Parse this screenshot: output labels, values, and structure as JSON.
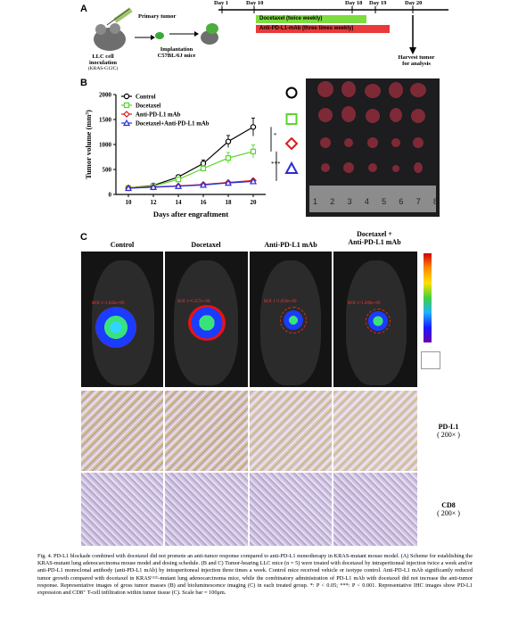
{
  "panel_a": {
    "letter": "A",
    "inoculation": [
      "LLC cell",
      "inoculation",
      "(KRAS-G12C)"
    ],
    "primary_tumor": "Primary tumor",
    "implantation": [
      "Implantation",
      "C57BL/6J mice"
    ],
    "days": [
      "Day 1",
      "Day 10",
      "Day 18",
      "Day 19",
      "Day 20"
    ],
    "docetaxel_bar": "Docetaxel (twice weekly)",
    "antipdl1_bar": "Anti-PD-L1-mAb (three times weekly)",
    "harvest": [
      "Harvest tumor",
      "for analysis"
    ],
    "colors": {
      "docetaxel": "#7ddc3f",
      "antipdl1": "#e83a3a"
    }
  },
  "panel_b": {
    "letter": "B",
    "significance": [
      "*",
      "***"
    ],
    "ruler_numbers": [
      "1",
      "2",
      "3",
      "4",
      "5",
      "6",
      "7",
      "8"
    ],
    "symbols": [
      "circle",
      "square",
      "diamond",
      "triangle"
    ]
  },
  "chart_data": {
    "type": "line",
    "xlabel": "Days after engraftment",
    "ylabel": "Tumor volume (mm³)",
    "x": [
      10,
      12,
      14,
      16,
      18,
      20
    ],
    "ylim": [
      0,
      2000
    ],
    "yticks": [
      0,
      500,
      1000,
      1500,
      2000
    ],
    "legend_position": "top-left",
    "series": [
      {
        "name": "Control",
        "color": "#000000",
        "marker": "circle",
        "values": [
          130,
          180,
          350,
          620,
          1060,
          1350
        ],
        "err": [
          15,
          20,
          40,
          70,
          120,
          180
        ]
      },
      {
        "name": "Docetaxel",
        "color": "#5ad62e",
        "marker": "square",
        "values": [
          130,
          170,
          300,
          520,
          730,
          860
        ],
        "err": [
          15,
          20,
          35,
          60,
          110,
          130
        ]
      },
      {
        "name": "Anti-PD-L1 mAb",
        "color": "#d81b1b",
        "marker": "diamond",
        "values": [
          130,
          150,
          170,
          200,
          240,
          280
        ],
        "err": [
          10,
          12,
          15,
          20,
          25,
          30
        ]
      },
      {
        "name": "Docetaxel+Anti-PD-L1 mAb",
        "color": "#2b2bd8",
        "marker": "triangle",
        "values": [
          125,
          145,
          165,
          190,
          230,
          260
        ],
        "err": [
          10,
          12,
          15,
          20,
          25,
          30
        ]
      }
    ]
  },
  "panel_c": {
    "letter": "C",
    "columns": [
      "Control",
      "Docetaxel",
      "Anti-PD-L1 mAb",
      "Docetaxel +\nAnti-PD-L1 mAb"
    ],
    "roi_labels": [
      "ROI 1=1.043e+09",
      "ROI 1=6.257e+08",
      "ROI 1=1.059e+09",
      "ROI 1=1.209e+09"
    ],
    "row_labels": [
      {
        "name": "PD-L1",
        "mag": "( 200× )"
      },
      {
        "name": "CD8",
        "mag": "( 200× )"
      }
    ]
  },
  "caption": "Fig. 4. PD-L1 blockade combined with docetaxel did not promote an anti-tumor response compared to anti-PD-L1 monotherapy in KRAS-mutant mouse model. (A) Scheme for establishing the KRAS-mutant lung adenocarcinoma mouse model and dosing schedule. (B and C) Tumor-bearing LLC mice (n = 5) were treated with docetaxel by intraperitoneal injection twice a week and/or anti-PD-L1 monoclonal antibody (anti-PD-L1 mAb) by intraperitoneal injection three times a week. Control mice received vehicle or isotype control. Anti-PD-L1 mAb significantly reduced tumor growth compared with docetaxel in KRASᴳ¹²ᶜ-mutant lung adenocarcinoma mice, while the combinatory administration of PD-L1 mAb with docetaxel did not increase the anti-tumor response. Representative images of gross tumor masses (B) and bioluminescence imaging (C) in each treated group. *: P < 0.05; ***: P < 0.001. Representative IHC images show PD-L1 expression and CD8⁺ T-cell infiltration within tumor tissue (C). Scale bar = 100μm."
}
